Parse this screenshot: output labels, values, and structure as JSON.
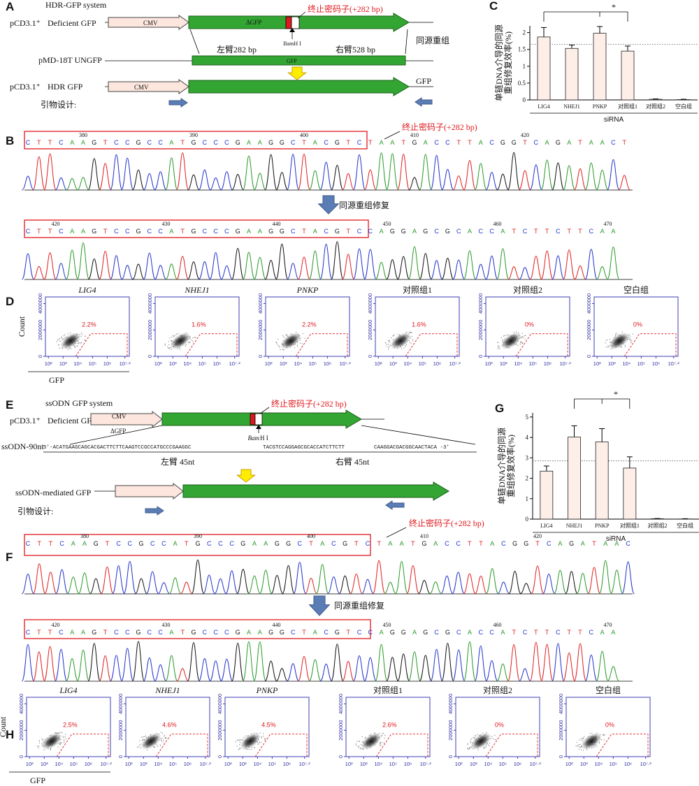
{
  "panel_labels": [
    "A",
    "B",
    "C",
    "D",
    "E",
    "F",
    "G",
    "H"
  ],
  "panel_a": {
    "system": "HDR-GFP system",
    "deficient": {
      "vector": "pCD3.1⁺",
      "name": "Deficient GFP",
      "promoter": "CMV",
      "gene": "ΔGFP"
    },
    "stop_codon": "终止密码子(+282 bp)",
    "site": "BamH I",
    "recombination": "同源重组",
    "left_arm": "左臂282 bp",
    "right_arm": "右臂528 bp",
    "donor": {
      "name": "pMD-18T UNGFP",
      "gene": "GFP"
    },
    "repaired": {
      "vector": "pCD3.1⁺",
      "name": "HDR  GFP",
      "promoter": "CMV",
      "gene": "GFP"
    },
    "primers": "引物设计:"
  },
  "panel_b": {
    "stop_codon": "终止密码子(+282 bp)",
    "repair": "同源重组修复",
    "before": {
      "sequence": "CTTCAAGTCCGCCATGCCCGAAGGCTACGTCTAATGACCTTACGGTCAGATAACT",
      "positions": [
        380,
        390,
        400,
        410,
        420
      ]
    },
    "after": {
      "sequence": "CTTCAAGTCCGCCATGCCCGAAGGCTACGTCCAGGAGCGCACCATCTTCTTCAA",
      "positions": [
        420,
        430,
        440,
        450,
        460,
        470
      ]
    }
  },
  "panel_d": {
    "y_label": "Count",
    "x_label": "GFP",
    "ylim": [
      0,
      4500000
    ],
    "yticks": [
      0,
      2000000,
      4000000
    ],
    "xlim": [
      1.8,
      7.5
    ],
    "xticks": [
      {
        "value": 2,
        "label": "10²"
      },
      {
        "value": 3,
        "label": "10³"
      },
      {
        "value": 4,
        "label": "10⁴"
      },
      {
        "value": 5,
        "label": "10⁵"
      },
      {
        "value": 6,
        "label": "10⁶"
      },
      {
        "value": 7.2,
        "label": "10⁷·²"
      }
    ],
    "plots": [
      {
        "title": "LIG4",
        "italic": true,
        "gate": "2.2%"
      },
      {
        "title": "NHEJ1",
        "italic": true,
        "gate": "1.6%"
      },
      {
        "title": "PNKP",
        "italic": true,
        "gate": "2.2%"
      },
      {
        "title": "对照组1",
        "italic": false,
        "gate": "1.6%"
      },
      {
        "title": "对照组2",
        "italic": false,
        "gate": "0%"
      },
      {
        "title": "空白组",
        "italic": false,
        "gate": "0%"
      }
    ]
  },
  "panel_e": {
    "system": "ssODN GFP system",
    "deficient": {
      "vector": "pCD3.1⁺",
      "name": "Deficient GFP",
      "promoter": "CMV",
      "gene": "ΔGFP"
    },
    "stop_codon": "终止密码子(+282 bp)",
    "site_italic": "Bam",
    "site_rest": "H I",
    "donor": {
      "name": "ssODN-90nt",
      "left_seq": "5′-ACATGAAGCAGCACGACTTCTTCAAGTCCGCCATGCCCGAAGGC",
      "middle_seq": "TACGTCCAGGAGCGCACCATCTTCTT",
      "right_seq": "CAAGGACGACGGCAACTACA -3′"
    },
    "left_arm": "左臂 45nt",
    "right_arm": "右臂 45nt",
    "repaired": "ssODN-mediated GFP",
    "primers": "引物设计:"
  },
  "panel_f": {
    "stop_codon": "终止密码子(+282 bp)",
    "repair": "同源重组修复",
    "before": {
      "sequence": "CTTCAAGTCCGCCATGCCCGAAGGCTACGTCTAATGACCTTACGGTCAGATAAC",
      "positions": [
        380,
        390,
        400,
        410,
        420
      ]
    },
    "after": {
      "sequence": "CTTCAAGTCCGCCATGCCCGAAGGCTACGTCCAGGAGCGCACCATCTTCTTCAA",
      "positions": [
        420,
        430,
        440,
        450,
        460,
        470
      ]
    }
  },
  "panel_h": {
    "y_label": "Count",
    "x_label": "GFP",
    "ylim": [
      0,
      4500000
    ],
    "yticks": [
      0,
      2000000,
      4000000
    ],
    "xlim": [
      1.8,
      7.5
    ],
    "xticks": [
      {
        "value": 2,
        "label": "10²"
      },
      {
        "value": 3,
        "label": "10³"
      },
      {
        "value": 4,
        "label": "10⁴"
      },
      {
        "value": 5,
        "label": "10⁵"
      },
      {
        "value": 6,
        "label": "10⁶"
      },
      {
        "value": 7.2,
        "label": "10⁷·²"
      }
    ],
    "plots": [
      {
        "title": "LIG4",
        "italic": true,
        "gate": "2.5%"
      },
      {
        "title": "NHEJ1",
        "italic": true,
        "gate": "4.6%"
      },
      {
        "title": "PNKP",
        "italic": true,
        "gate": "4.5%"
      },
      {
        "title": "对照组1",
        "italic": false,
        "gate": "2.6%"
      },
      {
        "title": "对照组2",
        "italic": false,
        "gate": "0%"
      },
      {
        "title": "空白组",
        "italic": false,
        "gate": "0%"
      }
    ]
  },
  "chart_data": [
    {
      "type": "bar",
      "y_label": [
        "单链DNA介导的同源",
        "重组修复效率(%)"
      ],
      "x_label": "siRNA",
      "categories": [
        "LIG4",
        "NHEJ1",
        "PNKP",
        "对照组1",
        "对照组2",
        "空白组"
      ],
      "values": [
        1.87,
        1.53,
        1.98,
        1.45,
        0.02,
        0.01
      ],
      "errors": [
        0.28,
        0.1,
        0.2,
        0.15,
        0.01,
        0.01
      ],
      "ylim": [
        0,
        2.2
      ],
      "yticks": [
        0,
        0.5,
        1,
        1.5,
        2
      ],
      "color": "#fdeee8",
      "reference_line": 1.65,
      "significance": {
        "label": "*",
        "categories": [
          "LIG4",
          "PNKP",
          "对照组1"
        ]
      }
    },
    {
      "type": "bar",
      "y_label": [
        "单链DNA介导的同源",
        "重组修复效率(%)"
      ],
      "x_label": "siRNA",
      "categories": [
        "LIG4",
        "NHEJ1",
        "PNKP",
        "对照组1",
        "对照组2",
        "空白组"
      ],
      "values": [
        2.35,
        4.02,
        3.78,
        2.5,
        0.02,
        0.01
      ],
      "errors": [
        0.25,
        0.55,
        0.65,
        0.55,
        0.01,
        0.01
      ],
      "ylim": [
        0,
        5.2
      ],
      "yticks": [
        0,
        1,
        2,
        3,
        4,
        5
      ],
      "color": "#fdeee8",
      "reference_line": 2.85,
      "significance": {
        "label": "*",
        "categories": [
          "NHEJ1",
          "PNKP",
          "对照组1"
        ]
      }
    }
  ]
}
